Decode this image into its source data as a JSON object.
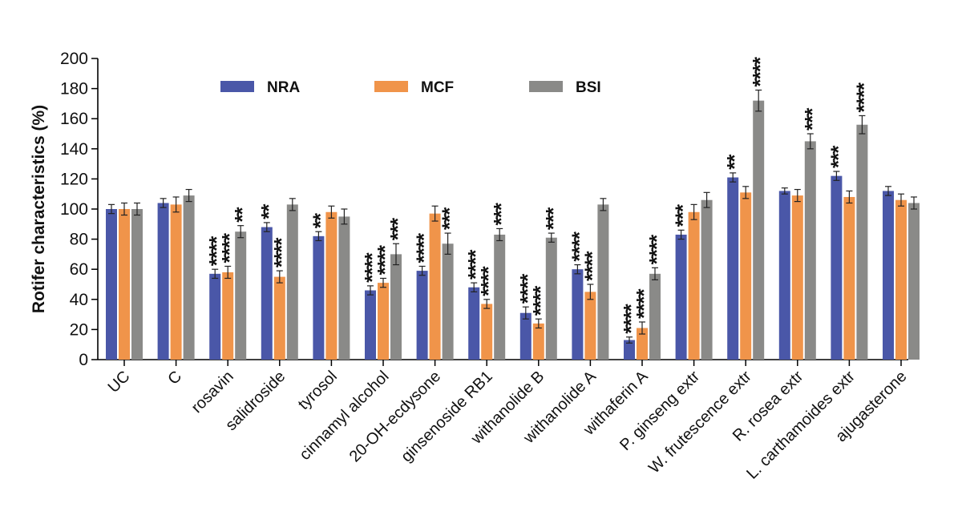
{
  "chart_data": {
    "type": "bar",
    "ylabel": "Rotifer characteristics (%)",
    "xlabel": "",
    "ylim": [
      0,
      200
    ],
    "yticks": [
      0,
      20,
      40,
      60,
      80,
      100,
      120,
      140,
      160,
      180,
      200
    ],
    "categories": [
      "UC",
      "C",
      "rosavin",
      "salidroside",
      "tyrosol",
      "cinnamyl alcohol",
      "20-OH-ecdysone",
      "ginsenoside RB1",
      "withanolide B",
      "withanolide A",
      "withaferin A",
      "P. ginseng extr",
      "W. frutescence extr",
      "R. rosea extr",
      "L. carthamoides extr",
      "ajugasterone"
    ],
    "series": [
      {
        "name": "NRA",
        "color": "#4a57a8",
        "values": [
          100,
          104,
          57,
          88,
          82,
          46,
          59,
          48,
          31,
          60,
          13,
          83,
          121,
          112,
          122,
          112
        ],
        "errors": [
          3,
          3,
          3,
          3,
          3,
          3,
          3,
          3,
          4,
          3,
          2,
          3,
          3,
          2,
          3,
          3
        ],
        "significance": [
          "",
          "",
          "****",
          "**",
          "**",
          "****",
          "****",
          "****",
          "****",
          "****",
          "****",
          "***",
          "**",
          "",
          "***",
          ""
        ]
      },
      {
        "name": "MCF",
        "color": "#f0944a",
        "values": [
          100,
          103,
          58,
          55,
          98,
          51,
          97,
          37,
          24,
          45,
          21,
          98,
          111,
          109,
          108,
          106
        ],
        "errors": [
          4,
          5,
          4,
          4,
          4,
          3,
          5,
          3,
          3,
          5,
          4,
          5,
          4,
          4,
          4,
          4
        ],
        "significance": [
          "",
          "",
          "****",
          "****",
          "",
          "****",
          "",
          "****",
          "****",
          "****",
          "****",
          "",
          "",
          "",
          "",
          ""
        ]
      },
      {
        "name": "BSI",
        "color": "#8a8a88",
        "values": [
          100,
          109,
          85,
          103,
          95,
          70,
          77,
          83,
          81,
          103,
          57,
          106,
          172,
          145,
          156,
          104
        ],
        "errors": [
          4,
          4,
          4,
          4,
          5,
          7,
          7,
          4,
          3,
          4,
          4,
          5,
          7,
          5,
          6,
          4
        ],
        "significance": [
          "",
          "",
          "**",
          "",
          "",
          "***",
          "***",
          "***",
          "***",
          "",
          "****",
          "",
          "****",
          "***",
          "****",
          ""
        ]
      }
    ],
    "legend": {
      "placement": "top-left"
    },
    "grid": false
  }
}
